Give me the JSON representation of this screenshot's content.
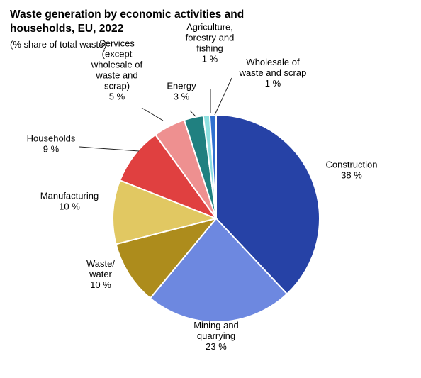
{
  "chart_data": {
    "type": "pie",
    "title_lines": [
      "Waste generation by economic activities and",
      "households, EU, 2022"
    ],
    "subtitle": "(% share of total waste)",
    "slices": [
      {
        "name": "Construction",
        "value": 38,
        "display": "38 %",
        "label_lines": [
          "Construction",
          "38 %"
        ],
        "color": "#2642a6"
      },
      {
        "name": "Mining and quarrying",
        "value": 23,
        "display": "23 %",
        "label_lines": [
          "Mining and",
          "quarrying",
          "23 %"
        ],
        "color": "#6d88e0"
      },
      {
        "name": "Waste/ water",
        "value": 10,
        "display": "10 %",
        "label_lines": [
          "Waste/",
          "water",
          "10 %"
        ],
        "color": "#ad8c1c"
      },
      {
        "name": "Manufacturing",
        "value": 10,
        "display": "10 %",
        "label_lines": [
          "Manufacturing",
          "10 %"
        ],
        "color": "#e1c862"
      },
      {
        "name": "Households",
        "value": 9,
        "display": "9 %",
        "label_lines": [
          "Households",
          "9 %"
        ],
        "color": "#e04040"
      },
      {
        "name": "Services (except wholesale of waste and scrap)",
        "value": 5,
        "display": "5 %",
        "label_lines": [
          "Services",
          "(except",
          "wholesale of",
          "waste and",
          "scrap)",
          "5 %"
        ],
        "color": "#ee9090"
      },
      {
        "name": "Energy",
        "value": 3,
        "display": "3 %",
        "label_lines": [
          "Energy",
          "3 %"
        ],
        "color": "#208080"
      },
      {
        "name": "Agriculture, forestry and fishing",
        "value": 1,
        "display": "1 %",
        "label_lines": [
          "Agriculture,",
          "forestry and",
          "fishing",
          "1 %"
        ],
        "color": "#8ee0e0"
      },
      {
        "name": "Wholesale of waste and scrap",
        "value": 1,
        "display": "1 %",
        "label_lines": [
          "Wholesale of",
          "waste and scrap",
          "1 %"
        ],
        "color": "#3070d0"
      }
    ]
  }
}
